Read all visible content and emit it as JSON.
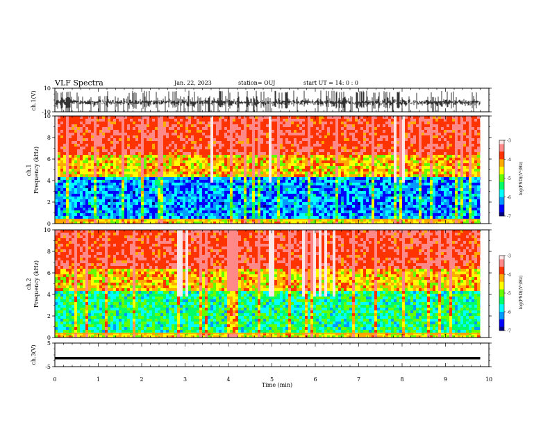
{
  "header": {
    "title": "VLF Spectra",
    "date": "Jan. 22, 2023",
    "station": "station= OUJ",
    "start": "start  UT =   14: 0  : 0"
  },
  "colors": {
    "colormap": [
      "#000080",
      "#0000ff",
      "#0099ff",
      "#00ffff",
      "#00ff66",
      "#66ff00",
      "#ffff00",
      "#ffaa00",
      "#ff3300",
      "#ff8888",
      "#ffe6e6"
    ],
    "trace": "#000000"
  },
  "chart_data": [
    {
      "name": "ch1-waveform",
      "type": "line",
      "ylabel": "ch.1(V)",
      "ylim": [
        -10,
        10
      ],
      "y_ticklabels": [
        "10",
        "-10"
      ],
      "xlim": [
        0,
        10
      ]
    },
    {
      "name": "ch1-spectrogram",
      "type": "heatmap",
      "ylabel_line1": "ch.1",
      "ylabel_line2": "Frequency (kHz)",
      "ylim": [
        0,
        10
      ],
      "y_ticklabels": [
        "0",
        "2",
        "4",
        "6",
        "8",
        "10"
      ],
      "xlim": [
        0,
        10
      ],
      "colorbar": {
        "label": "log(PSD)(V²/Hz)",
        "range": [
          -7,
          -3
        ],
        "ticklabels": [
          "-3",
          "-4",
          "-5",
          "-6",
          "-7"
        ]
      }
    },
    {
      "name": "ch2-spectrogram",
      "type": "heatmap",
      "ylabel_line1": "ch.2",
      "ylabel_line2": "Frequency (kHz)",
      "ylim": [
        0,
        10
      ],
      "y_ticklabels": [
        "0",
        "2",
        "4",
        "6",
        "8",
        "10"
      ],
      "xlim": [
        0,
        10
      ],
      "colorbar": {
        "label": "log(PSD)(V²/Hz)",
        "range": [
          -7,
          -3
        ],
        "ticklabels": [
          "-3",
          "-4",
          "-5",
          "-6",
          "-7"
        ]
      }
    },
    {
      "name": "ch3-waveform",
      "type": "line",
      "ylabel": "ch.3(V)",
      "ylim": [
        -5,
        5
      ],
      "y_ticklabels": [
        "5",
        "-5"
      ],
      "level": -1.4,
      "xlim": [
        0,
        10
      ],
      "x_ticklabels": [
        "0",
        "1",
        "2",
        "3",
        "4",
        "5",
        "6",
        "7",
        "8",
        "9",
        "10"
      ],
      "xlabel": "Time (min)",
      "data_end": 9.8
    }
  ]
}
